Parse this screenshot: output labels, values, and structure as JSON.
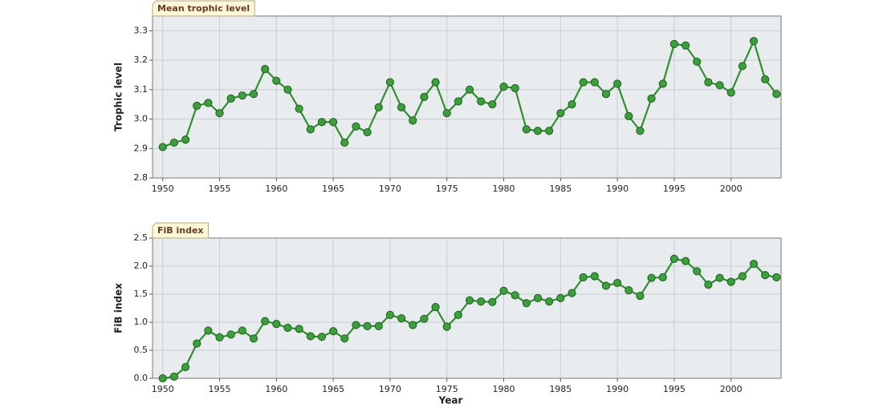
{
  "chart_data": [
    {
      "type": "line",
      "title": "Mean trophic level",
      "y_label": "Trophic level",
      "x": [
        1950,
        1951,
        1952,
        1953,
        1954,
        1955,
        1956,
        1957,
        1958,
        1959,
        1960,
        1961,
        1962,
        1963,
        1964,
        1965,
        1966,
        1967,
        1968,
        1969,
        1970,
        1971,
        1972,
        1973,
        1974,
        1975,
        1976,
        1977,
        1978,
        1979,
        1980,
        1981,
        1982,
        1983,
        1984,
        1985,
        1986,
        1987,
        1988,
        1989,
        1990,
        1991,
        1992,
        1993,
        1994,
        1995,
        1996,
        1997,
        1998,
        1999,
        2000,
        2001,
        2002,
        2003,
        2004
      ],
      "series": [
        {
          "name": "Mean trophic level",
          "color": "#2f8f2f",
          "values": [
            2.905,
            2.92,
            2.93,
            3.045,
            3.055,
            3.02,
            3.07,
            3.08,
            3.085,
            3.17,
            3.13,
            3.1,
            3.035,
            2.965,
            2.99,
            2.99,
            2.92,
            2.975,
            2.955,
            3.04,
            3.125,
            3.04,
            2.995,
            3.075,
            3.125,
            3.02,
            3.06,
            3.1,
            3.06,
            3.05,
            3.11,
            3.105,
            2.965,
            2.96,
            2.96,
            3.02,
            3.05,
            3.125,
            3.125,
            3.085,
            3.12,
            3.01,
            2.96,
            3.07,
            3.12,
            3.255,
            3.25,
            3.195,
            3.125,
            3.115,
            3.09,
            3.18,
            3.265,
            3.135,
            3.085
          ]
        }
      ],
      "xlim": [
        1949.1,
        2004.4
      ],
      "xticks": [
        1950,
        1955,
        1960,
        1965,
        1970,
        1975,
        1980,
        1985,
        1990,
        1995,
        2000
      ],
      "ylim": [
        2.8,
        3.35
      ],
      "yticks": [
        2.8,
        2.9,
        {
          "value": 3,
          "label": "3.0"
        },
        3.1,
        3.2,
        3.3
      ],
      "grid": true
    },
    {
      "type": "line",
      "title": "FiB index",
      "y_label": "FiB index",
      "x_label": "Year",
      "x": [
        1950,
        1951,
        1952,
        1953,
        1954,
        1955,
        1956,
        1957,
        1958,
        1959,
        1960,
        1961,
        1962,
        1963,
        1964,
        1965,
        1966,
        1967,
        1968,
        1969,
        1970,
        1971,
        1972,
        1973,
        1974,
        1975,
        1976,
        1977,
        1978,
        1979,
        1980,
        1981,
        1982,
        1983,
        1984,
        1985,
        1986,
        1987,
        1988,
        1989,
        1990,
        1991,
        1992,
        1993,
        1994,
        1995,
        1996,
        1997,
        1998,
        1999,
        2000,
        2001,
        2002,
        2003,
        2004
      ],
      "series": [
        {
          "name": "FiB index",
          "color": "#2f8f2f",
          "values": [
            0,
            0.03,
            0.2,
            0.62,
            0.85,
            0.73,
            0.78,
            0.85,
            0.71,
            1.02,
            0.97,
            0.9,
            0.88,
            0.75,
            0.74,
            0.84,
            0.71,
            0.95,
            0.93,
            0.93,
            1.13,
            1.07,
            0.95,
            1.06,
            1.27,
            0.92,
            1.13,
            1.39,
            1.37,
            1.36,
            1.56,
            1.48,
            1.34,
            1.43,
            1.37,
            1.43,
            1.52,
            1.8,
            1.82,
            1.65,
            1.7,
            1.57,
            1.47,
            1.79,
            1.8,
            2.13,
            2.09,
            1.91,
            1.67,
            1.79,
            1.72,
            1.82,
            2.04,
            1.84,
            1.8
          ]
        }
      ],
      "xlim": [
        1949.1,
        2004.4
      ],
      "xticks": [
        1950,
        1955,
        1960,
        1965,
        1970,
        1975,
        1980,
        1985,
        1990,
        1995,
        2000
      ],
      "ylim": [
        0,
        2.5
      ],
      "yticks": [
        {
          "value": 0,
          "label": "0.0"
        },
        0.5,
        {
          "value": 1,
          "label": "1.0"
        },
        1.5,
        {
          "value": 2,
          "label": "2.0"
        },
        2.5
      ],
      "grid": true
    }
  ]
}
